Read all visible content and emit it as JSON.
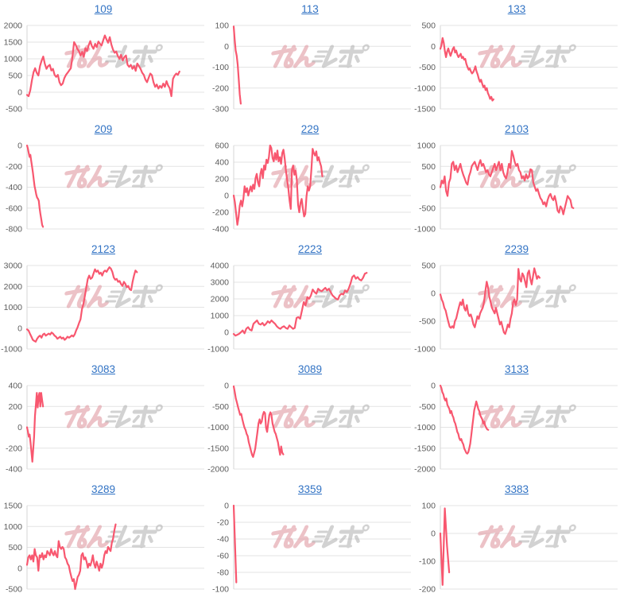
{
  "page": {
    "background": "#ffffff"
  },
  "style": {
    "line_color": "#f8576f",
    "grid_color": "#e3e3e3",
    "axis_color": "#d6d6d6",
    "tick_label_color": "#5c5c5c",
    "link_color": "#3273c4"
  },
  "watermark": {
    "text": "みんレポ",
    "pink": "#e2a2aa",
    "gray": "#b5b5b5"
  },
  "chart_data": [
    {
      "type": "line",
      "title": "109",
      "ylim": [
        -500,
        2000
      ],
      "yticks": [
        2000,
        1500,
        1000,
        500,
        0,
        -500
      ],
      "x_end_fraction": 0.86,
      "values": [
        -80,
        -120,
        60,
        350,
        600,
        720,
        580,
        500,
        780,
        950,
        1070,
        850,
        700,
        780,
        820,
        650,
        700,
        520,
        460,
        520,
        300,
        210,
        260,
        420,
        520,
        580,
        650,
        720,
        1050,
        1500,
        1420,
        1300,
        1230,
        1100,
        1210,
        1060,
        1320,
        1230,
        1400,
        1530,
        1380,
        1300,
        1450,
        1350,
        1520,
        1450,
        1400,
        1560,
        1700,
        1580,
        1480,
        1650,
        1430,
        1280,
        1180,
        1220,
        1080,
        1000,
        1120,
        950,
        1050,
        1100,
        820,
        760,
        820,
        700,
        780,
        640,
        860,
        780,
        700,
        580,
        520,
        380,
        300,
        430,
        560,
        510,
        300,
        160,
        230,
        110,
        190,
        130,
        260,
        160,
        330,
        200,
        120,
        -120,
        400,
        500,
        560,
        520,
        620
      ]
    },
    {
      "type": "line",
      "title": "113",
      "ylim": [
        -300,
        100
      ],
      "yticks": [
        100,
        0,
        -100,
        -200,
        -300
      ],
      "x_end_fraction": 0.04,
      "values": [
        95,
        30,
        -20,
        -45,
        -90,
        -160,
        -230,
        -275
      ]
    },
    {
      "type": "line",
      "title": "133",
      "ylim": [
        -1500,
        500
      ],
      "yticks": [
        500,
        0,
        -500,
        -1000,
        -1500
      ],
      "x_end_fraction": 0.3,
      "values": [
        -60,
        30,
        200,
        80,
        -120,
        -260,
        -130,
        -50,
        -150,
        -230,
        -150,
        -60,
        -20,
        -150,
        -100,
        -200,
        -260,
        -220,
        -180,
        -280,
        -250,
        -320,
        -300,
        -420,
        -500,
        -560,
        -530,
        -600,
        -650,
        -620,
        -560,
        -480,
        -600,
        -680,
        -780,
        -850,
        -800,
        -900,
        -980,
        -940,
        -1050,
        -1000,
        -1120,
        -1180,
        -1260,
        -1210,
        -1300,
        -1270
      ]
    },
    {
      "type": "line",
      "title": "209",
      "ylim": [
        -800,
        0
      ],
      "yticks": [
        0,
        -200,
        -400,
        -600,
        -800
      ],
      "x_end_fraction": 0.09,
      "values": [
        0,
        -30,
        -70,
        -110,
        -90,
        -150,
        -200,
        -260,
        -330,
        -390,
        -430,
        -470,
        -500,
        -510,
        -530,
        -600,
        -660,
        -710,
        -760,
        -780
      ]
    },
    {
      "type": "line",
      "title": "229",
      "ylim": [
        -400,
        600
      ],
      "yticks": [
        600,
        400,
        200,
        0,
        -200,
        -400
      ],
      "x_end_fraction": 0.5,
      "values": [
        0,
        -80,
        -220,
        -350,
        -260,
        -120,
        -60,
        -130,
        -40,
        110,
        40,
        90,
        0,
        60,
        110,
        50,
        130,
        80,
        210,
        260,
        160,
        110,
        260,
        320,
        210,
        360,
        310,
        430,
        390,
        460,
        600,
        570,
        450,
        410,
        510,
        430,
        540,
        410,
        460,
        380,
        510,
        550,
        440,
        300,
        190,
        90,
        -60,
        -160,
        310,
        360,
        250,
        300,
        190,
        -110,
        -200,
        -90,
        -40,
        -160,
        -250,
        -220,
        -10,
        110,
        60,
        110,
        320,
        560,
        510,
        480,
        530,
        420,
        460,
        400,
        350,
        230
      ]
    },
    {
      "type": "line",
      "title": "2103",
      "ylim": [
        -1000,
        1000
      ],
      "yticks": [
        1000,
        500,
        0,
        -500,
        -1000
      ],
      "x_end_fraction": 0.75,
      "values": [
        0,
        160,
        90,
        260,
        -90,
        -210,
        110,
        210,
        560,
        610,
        410,
        520,
        360,
        460,
        560,
        410,
        300,
        210,
        110,
        60,
        260,
        360,
        510,
        560,
        610,
        510,
        410,
        560,
        650,
        510,
        560,
        460,
        360,
        410,
        310,
        260,
        360,
        460,
        560,
        410,
        510,
        610,
        410,
        560,
        360,
        260,
        210,
        360,
        560,
        460,
        870,
        760,
        610,
        510,
        560,
        410,
        360,
        210,
        260,
        160,
        310,
        210,
        260,
        430,
        410,
        110,
        10,
        -90,
        -40,
        -160,
        -260,
        -310,
        -410,
        -360,
        -460,
        -310,
        -210,
        -160,
        -260,
        -310,
        -210,
        -360,
        -560,
        -610,
        -460,
        -510,
        -650,
        -500,
        -360,
        -210,
        -260,
        -310,
        -480,
        -500
      ]
    },
    {
      "type": "line",
      "title": "2123",
      "ylim": [
        -1000,
        3000
      ],
      "yticks": [
        3000,
        2000,
        1000,
        0,
        -1000
      ],
      "x_end_fraction": 0.62,
      "values": [
        -60,
        -110,
        -260,
        -410,
        -560,
        -610,
        -650,
        -510,
        -410,
        -360,
        -460,
        -310,
        -260,
        -360,
        -310,
        -260,
        -310,
        -210,
        -260,
        -360,
        -410,
        -510,
        -460,
        -410,
        -500,
        -450,
        -560,
        -500,
        -410,
        -460,
        -410,
        -350,
        -400,
        -300,
        -100,
        50,
        250,
        420,
        900,
        1150,
        1550,
        1950,
        2350,
        2520,
        2360,
        2420,
        2620,
        2820,
        2700,
        2760,
        2600,
        2660,
        2520,
        2700,
        2760,
        2700,
        2820,
        2920,
        2850,
        2700,
        2420,
        2320,
        2360,
        2220,
        2260,
        2120,
        2020,
        2220,
        2120,
        1960,
        2020,
        1860,
        1820,
        2220,
        2520,
        2760,
        2680
      ]
    },
    {
      "type": "line",
      "title": "2223",
      "ylim": [
        -1000,
        4000
      ],
      "yticks": [
        4000,
        3000,
        2000,
        1000,
        0,
        -1000
      ],
      "x_end_fraction": 0.75,
      "values": [
        -100,
        -200,
        -150,
        -90,
        0,
        110,
        -60,
        210,
        310,
        160,
        110,
        510,
        610,
        710,
        510,
        460,
        560,
        410,
        510,
        660,
        560,
        710,
        610,
        510,
        360,
        260,
        210,
        310,
        360,
        260,
        210,
        410,
        310,
        210,
        260,
        860,
        910,
        810,
        1310,
        1810,
        1610,
        2110,
        2010,
        2210,
        2560,
        2410,
        2310,
        2610,
        2510,
        2460,
        2560,
        2660,
        2510,
        2610,
        2410,
        2210,
        2110,
        2010,
        1960,
        2210,
        2310,
        2260,
        2510,
        2410,
        2610,
        2910,
        3310,
        3410,
        3210,
        3310,
        3160,
        3110,
        3260,
        3510,
        3560
      ]
    },
    {
      "type": "line",
      "title": "2239",
      "ylim": [
        -1000,
        500
      ],
      "yticks": [
        500,
        0,
        -500,
        -1000
      ],
      "x_end_fraction": 0.56,
      "values": [
        -20,
        -110,
        -160,
        -260,
        -310,
        -410,
        -510,
        -600,
        -620,
        -590,
        -620,
        -500,
        -450,
        -350,
        -250,
        -160,
        -210,
        -110,
        -260,
        -310,
        -210,
        -360,
        -410,
        -380,
        -460,
        -560,
        -610,
        -510,
        -410,
        -460,
        -360,
        -310,
        -260,
        -160,
        40,
        210,
        110,
        -60,
        -160,
        -260,
        -310,
        -360,
        -260,
        -360,
        -460,
        -560,
        -510,
        -610,
        -700,
        -730,
        -650,
        -560,
        -610,
        -460,
        -360,
        -160,
        -110,
        -210,
        -110,
        440,
        260,
        210,
        360,
        310,
        210,
        110,
        360,
        410,
        260,
        160,
        310,
        450,
        360,
        260,
        310,
        280
      ]
    },
    {
      "type": "line",
      "title": "3083",
      "ylim": [
        -400,
        400
      ],
      "yticks": [
        400,
        200,
        0,
        -200,
        -400
      ],
      "x_end_fraction": 0.09,
      "values": [
        0,
        -40,
        -90,
        -70,
        -150,
        -240,
        -330,
        -210,
        -90,
        110,
        210,
        330,
        190,
        290,
        330,
        200,
        330,
        260,
        200
      ]
    },
    {
      "type": "line",
      "title": "3089",
      "ylim": [
        -2000,
        0
      ],
      "yticks": [
        0,
        -500,
        -1000,
        -1500,
        -2000
      ],
      "x_end_fraction": 0.28,
      "values": [
        -20,
        -160,
        -310,
        -410,
        -510,
        -610,
        -700,
        -680,
        -810,
        -910,
        -1010,
        -1060,
        -1160,
        -1210,
        -1360,
        -1460,
        -1560,
        -1660,
        -1710,
        -1610,
        -1510,
        -1310,
        -1110,
        -910,
        -810,
        -910,
        -860,
        -710,
        -630,
        -660,
        -1010,
        -1110,
        -910,
        -710,
        -640,
        -710,
        -910,
        -1010,
        -1110,
        -1160,
        -1260,
        -1360,
        -1510,
        -1660,
        -1460,
        -1610,
        -1650
      ]
    },
    {
      "type": "line",
      "title": "3133",
      "ylim": [
        -2000,
        0
      ],
      "yticks": [
        0,
        -500,
        -1000,
        -1500,
        -2000
      ],
      "x_end_fraction": 0.27,
      "values": [
        0,
        -60,
        -160,
        -210,
        -310,
        -360,
        -310,
        -460,
        -510,
        -560,
        -660,
        -610,
        -710,
        -760,
        -860,
        -910,
        -1010,
        -1110,
        -1160,
        -1260,
        -1310,
        -1280,
        -1360,
        -1410,
        -1510,
        -1560,
        -1610,
        -1630,
        -1600,
        -1500,
        -1390,
        -1190,
        -990,
        -790,
        -590,
        -490,
        -380,
        -460,
        -560,
        -610,
        -710,
        -760,
        -810,
        -910,
        -860,
        -960,
        -1010,
        -1050,
        -1060
      ]
    },
    {
      "type": "line",
      "title": "3289",
      "ylim": [
        -500,
        1500
      ],
      "yticks": [
        1500,
        1000,
        500,
        0,
        -500
      ],
      "x_end_fraction": 0.5,
      "values": [
        80,
        260,
        310,
        210,
        310,
        160,
        460,
        310,
        260,
        -60,
        310,
        260,
        360,
        210,
        310,
        260,
        410,
        360,
        310,
        460,
        360,
        310,
        410,
        310,
        260,
        650,
        510,
        460,
        510,
        460,
        260,
        210,
        110,
        60,
        -90,
        -210,
        -310,
        -260,
        -500,
        -360,
        -210,
        -160,
        -60,
        310,
        360,
        210,
        260,
        160,
        10,
        110,
        60,
        160,
        310,
        110,
        10,
        160,
        60,
        -60,
        110,
        10,
        110,
        310,
        410,
        360,
        510,
        460,
        410,
        610,
        710,
        910,
        1050
      ]
    },
    {
      "type": "line",
      "title": "3359",
      "ylim": [
        -100,
        0
      ],
      "yticks": [
        0,
        -20,
        -40,
        -60,
        -80,
        -100
      ],
      "x_end_fraction": 0.015,
      "values": [
        0,
        -92
      ]
    },
    {
      "type": "line",
      "title": "3383",
      "ylim": [
        -200,
        100
      ],
      "yticks": [
        100,
        0,
        -100,
        -200
      ],
      "x_end_fraction": 0.05,
      "values": [
        0,
        -185,
        90,
        -45,
        -140
      ]
    }
  ]
}
